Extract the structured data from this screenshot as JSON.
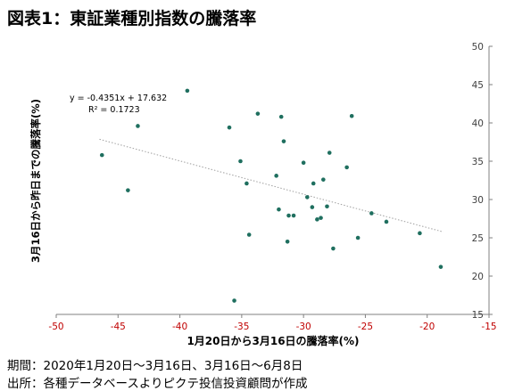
{
  "title": "図表1：東証業種別指数の騰落率",
  "footnotes": {
    "period": "期間：2020年1月20日～3月16日、3月16日～6月8日",
    "source": "出所：各種データベースよりピクテ投信投資顧問が作成"
  },
  "chart_data": {
    "type": "scatter",
    "xlabel": "1月20日から3月16日の騰落率(%)",
    "ylabel": "3月16日から昨日までの騰落率(%)",
    "xlim": [
      -50,
      -15
    ],
    "ylim": [
      15,
      50
    ],
    "xticks": [
      -50,
      -45,
      -40,
      -35,
      -30,
      -25,
      -20,
      -15
    ],
    "yticks": [
      15,
      20,
      25,
      30,
      35,
      40,
      45,
      50
    ],
    "grid": false,
    "colors": {
      "points": "#1f6f5f",
      "trendline": "#a0a0a0",
      "axis": "#808080"
    },
    "trendline": {
      "slope": -0.4351,
      "intercept": 17.632,
      "x_range": [
        -46.5,
        -18.7
      ],
      "equation": "y = -0.4351x + 17.632",
      "r_squared": "R² = 0.1723"
    },
    "points": [
      {
        "x": -46.3,
        "y": 35.8
      },
      {
        "x": -44.2,
        "y": 31.2
      },
      {
        "x": -43.4,
        "y": 39.6
      },
      {
        "x": -39.4,
        "y": 44.2
      },
      {
        "x": -36.0,
        "y": 39.4
      },
      {
        "x": -35.1,
        "y": 35.0
      },
      {
        "x": -34.6,
        "y": 32.1
      },
      {
        "x": -34.4,
        "y": 25.4
      },
      {
        "x": -33.7,
        "y": 41.2
      },
      {
        "x": -35.6,
        "y": 16.8
      },
      {
        "x": -32.2,
        "y": 33.1
      },
      {
        "x": -32.0,
        "y": 28.7
      },
      {
        "x": -31.8,
        "y": 40.8
      },
      {
        "x": -31.6,
        "y": 37.6
      },
      {
        "x": -31.3,
        "y": 24.5
      },
      {
        "x": -31.2,
        "y": 27.9
      },
      {
        "x": -30.8,
        "y": 27.9
      },
      {
        "x": -30.0,
        "y": 34.8
      },
      {
        "x": -29.7,
        "y": 30.3
      },
      {
        "x": -29.3,
        "y": 29.0
      },
      {
        "x": -29.2,
        "y": 32.1
      },
      {
        "x": -28.9,
        "y": 27.4
      },
      {
        "x": -28.6,
        "y": 27.6
      },
      {
        "x": -28.4,
        "y": 32.6
      },
      {
        "x": -28.1,
        "y": 29.1
      },
      {
        "x": -27.9,
        "y": 36.1
      },
      {
        "x": -27.6,
        "y": 23.6
      },
      {
        "x": -26.5,
        "y": 34.2
      },
      {
        "x": -26.1,
        "y": 40.9
      },
      {
        "x": -25.6,
        "y": 25.0
      },
      {
        "x": -24.5,
        "y": 28.2
      },
      {
        "x": -23.3,
        "y": 27.1
      },
      {
        "x": -20.6,
        "y": 25.6
      },
      {
        "x": -18.9,
        "y": 21.2
      }
    ]
  }
}
